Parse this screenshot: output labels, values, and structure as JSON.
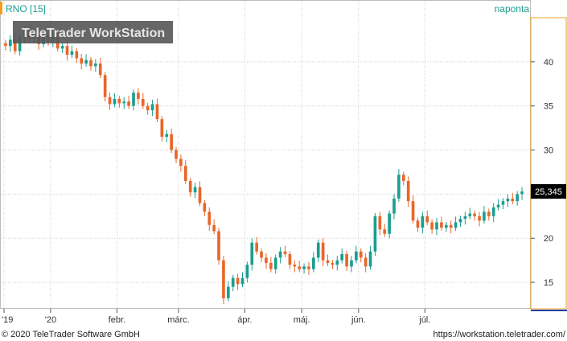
{
  "header": {
    "symbol": "RNO [15]",
    "interval": "naponta",
    "watermark": "TeleTrader WorkStation"
  },
  "footer": {
    "copyright": "© 2020 TeleTrader Software GmbH",
    "url": "https://workstation.teletrader.com/"
  },
  "colors": {
    "up": "#1a9e8f",
    "down": "#e8662a",
    "accent": "#f0a020",
    "grid": "#cccccc",
    "text": "#1a9e8f"
  },
  "chart_data": {
    "type": "candlestick",
    "ylim": [
      12,
      45
    ],
    "yticks": [
      15,
      20,
      25,
      30,
      35,
      40
    ],
    "last_price": "25,345",
    "x_ticks": [
      {
        "label": "'19",
        "i": 0
      },
      {
        "label": "'20",
        "i": 10
      },
      {
        "label": "febr.",
        "i": 24
      },
      {
        "label": "márc.",
        "i": 37
      },
      {
        "label": "ápr.",
        "i": 51
      },
      {
        "label": "máj.",
        "i": 63
      },
      {
        "label": "jún.",
        "i": 75
      },
      {
        "label": "júl.",
        "i": 89
      }
    ],
    "closes": [
      41.8,
      42.5,
      41.2,
      42.8,
      43.5,
      42.6,
      43.2,
      42.0,
      43.0,
      42.3,
      42.8,
      41.5,
      41.8,
      40.8,
      41.2,
      40.4,
      39.8,
      40.2,
      39.5,
      39.8,
      38.5,
      36.0,
      35.2,
      35.8,
      35.3,
      35.5,
      35.0,
      36.5,
      35.8,
      35.0,
      34.5,
      35.2,
      33.5,
      31.5,
      31.8,
      30.0,
      29.0,
      28.2,
      26.5,
      25.2,
      25.8,
      24.0,
      23.0,
      21.5,
      20.8,
      17.5,
      13.2,
      14.5,
      15.5,
      14.8,
      15.5,
      17.0,
      19.5,
      18.5,
      17.8,
      17.2,
      16.5,
      17.8,
      18.5,
      18.2,
      17.0,
      16.8,
      16.5,
      16.8,
      16.5,
      17.8,
      19.5,
      17.5,
      17.2,
      17.0,
      17.5,
      18.2,
      16.8,
      17.5,
      18.5,
      17.8,
      16.8,
      18.5,
      22.5,
      21.0,
      20.5,
      22.8,
      24.5,
      27.2,
      26.5,
      24.2,
      22.0,
      21.2,
      22.5,
      21.8,
      21.0,
      21.8,
      21.2,
      21.5,
      21.2,
      21.8,
      22.2,
      22.5,
      22.8,
      22.5,
      22.0,
      23.0,
      22.5,
      23.5,
      23.8,
      24.2,
      24.5,
      24.2,
      25.0,
      25.3
    ]
  }
}
